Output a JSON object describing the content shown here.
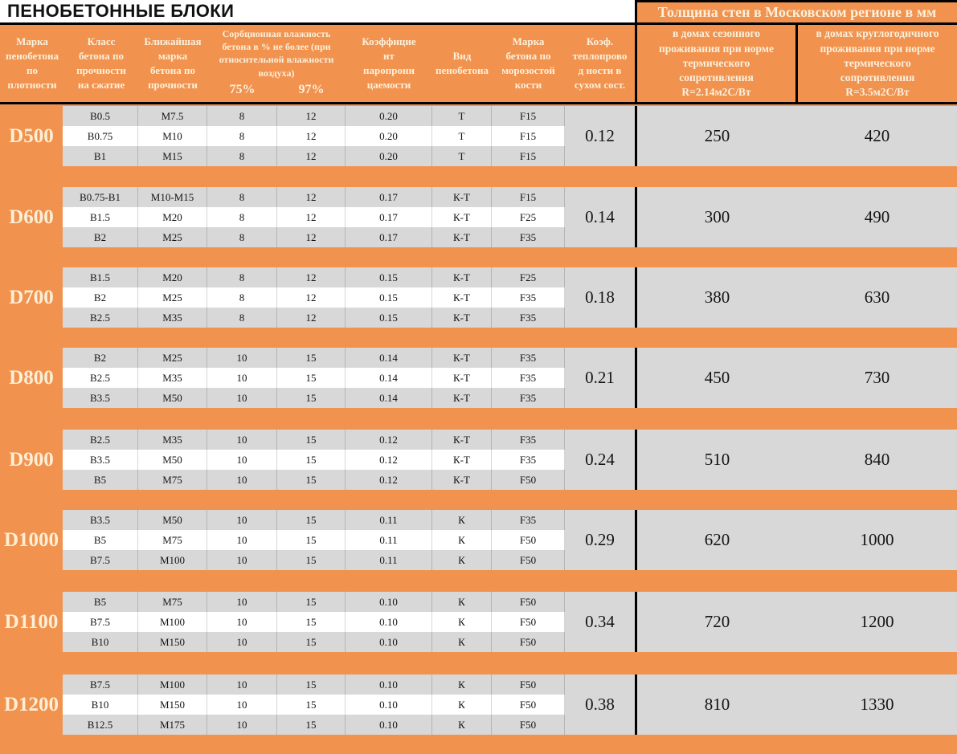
{
  "page": {
    "title": "ПЕНОБЕТОННЫЕ БЛОКИ"
  },
  "colors": {
    "accent_orange": "#F1924E",
    "row_gray": "#D8D8D8",
    "row_white": "#FFFFFF",
    "divider_black": "#000000",
    "header_text": "#FBF0DC"
  },
  "header": {
    "density_grade": "Марка\nпенобетона\nпо\nплотности",
    "strength_class": "Класс\nбетона по\nпрочности\nна сжатие",
    "nearest_grade": "Ближайшая\nмарка\nбетона по\nпрочности",
    "sorption_label": "Сорбционная влажность\nбетона в % не более (при\nотносительной влажности\nвоздуха)",
    "sorption_75": "75%",
    "sorption_97": "97%",
    "vapor_permeability": "Коэффицие\nнт\nпаропрони\nцаемости",
    "foam_type": "Вид\nпенобетона",
    "frost_resistance": "Марка\nбетона по\nморозостой\nкости",
    "thermal_conductivity": "Коэф.\nтеплопрово\nд ности в\nсухом сост.",
    "right_title": "Толщина стен в Московском регионе в мм",
    "seasonal": "в домах сезонного\nпроживания при норме\nтермического\nсопротивления\nR=2.14м2С/Вт",
    "yearround": "в домах круглогодичного\nпроживания при норме\nтермического\nсопротивления\nR=3.5м2С/Вт"
  },
  "groups": [
    {
      "grade": "D500",
      "rows": [
        [
          "В0.5",
          "М7.5",
          "8",
          "12",
          "0.20",
          "Т",
          "F15"
        ],
        [
          "В0.75",
          "М10",
          "8",
          "12",
          "0.20",
          "Т",
          "F15"
        ],
        [
          "В1",
          "М15",
          "8",
          "12",
          "0.20",
          "Т",
          "F15"
        ]
      ],
      "thermal_conductivity": "0.12",
      "seasonal_thickness": "250",
      "yearround_thickness": "420"
    },
    {
      "grade": "D600",
      "rows": [
        [
          "В0.75-В1",
          "М10-М15",
          "8",
          "12",
          "0.17",
          "К-Т",
          "F15"
        ],
        [
          "В1.5",
          "М20",
          "8",
          "12",
          "0.17",
          "К-Т",
          "F25"
        ],
        [
          "В2",
          "М25",
          "8",
          "12",
          "0.17",
          "К-Т",
          "F35"
        ]
      ],
      "thermal_conductivity": "0.14",
      "seasonal_thickness": "300",
      "yearround_thickness": "490"
    },
    {
      "grade": "D700",
      "rows": [
        [
          "В1.5",
          "М20",
          "8",
          "12",
          "0.15",
          "К-Т",
          "F25"
        ],
        [
          "В2",
          "М25",
          "8",
          "12",
          "0.15",
          "К-Т",
          "F35"
        ],
        [
          "В2.5",
          "М35",
          "8",
          "12",
          "0.15",
          "К-Т",
          "F35"
        ]
      ],
      "thermal_conductivity": "0.18",
      "seasonal_thickness": "380",
      "yearround_thickness": "630"
    },
    {
      "grade": "D800",
      "rows": [
        [
          "В2",
          "М25",
          "10",
          "15",
          "0.14",
          "К-Т",
          "F35"
        ],
        [
          "В2.5",
          "М35",
          "10",
          "15",
          "0.14",
          "К-Т",
          "F35"
        ],
        [
          "В3.5",
          "М50",
          "10",
          "15",
          "0.14",
          "К-Т",
          "F35"
        ]
      ],
      "thermal_conductivity": "0.21",
      "seasonal_thickness": "450",
      "yearround_thickness": "730"
    },
    {
      "grade": "D900",
      "rows": [
        [
          "В2.5",
          "М35",
          "10",
          "15",
          "0.12",
          "К-Т",
          "F35"
        ],
        [
          "В3.5",
          "М50",
          "10",
          "15",
          "0.12",
          "К-Т",
          "F35"
        ],
        [
          "В5",
          "М75",
          "10",
          "15",
          "0.12",
          "К-Т",
          "F50"
        ]
      ],
      "thermal_conductivity": "0.24",
      "seasonal_thickness": "510",
      "yearround_thickness": "840"
    },
    {
      "grade": "D1000",
      "rows": [
        [
          "В3.5",
          "М50",
          "10",
          "15",
          "0.11",
          "К",
          "F35"
        ],
        [
          "В5",
          "М75",
          "10",
          "15",
          "0.11",
          "К",
          "F50"
        ],
        [
          "В7.5",
          "М100",
          "10",
          "15",
          "0.11",
          "К",
          "F50"
        ]
      ],
      "thermal_conductivity": "0.29",
      "seasonal_thickness": "620",
      "yearround_thickness": "1000"
    },
    {
      "grade": "D1100",
      "rows": [
        [
          "В5",
          "М75",
          "10",
          "15",
          "0.10",
          "К",
          "F50"
        ],
        [
          "В7.5",
          "М100",
          "10",
          "15",
          "0.10",
          "К",
          "F50"
        ],
        [
          "В10",
          "М150",
          "10",
          "15",
          "0.10",
          "К",
          "F50"
        ]
      ],
      "thermal_conductivity": "0.34",
      "seasonal_thickness": "720",
      "yearround_thickness": "1200"
    },
    {
      "grade": "D1200",
      "rows": [
        [
          "В7.5",
          "М100",
          "10",
          "15",
          "0.10",
          "К",
          "F50"
        ],
        [
          "В10",
          "М150",
          "10",
          "15",
          "0.10",
          "К",
          "F50"
        ],
        [
          "В12.5",
          "М175",
          "10",
          "15",
          "0.10",
          "К",
          "F50"
        ]
      ],
      "thermal_conductivity": "0.38",
      "seasonal_thickness": "810",
      "yearround_thickness": "1330"
    }
  ]
}
